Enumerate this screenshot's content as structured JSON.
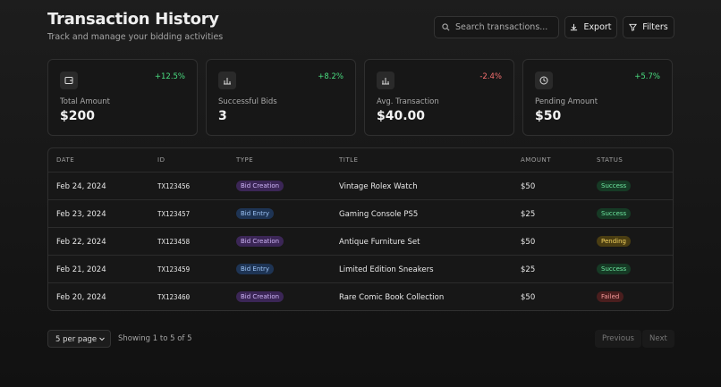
{
  "header": {
    "title": "Transaction History",
    "subtitle": "Track and manage your bidding activities",
    "search_placeholder": "Search transactions...",
    "export": "Export",
    "filters": "Filters"
  },
  "stats": [
    {
      "label": "Total Amount",
      "value": "$200",
      "change": "+12.5%"
    },
    {
      "label": "Successful Bids",
      "value": "3",
      "change": "+8.2%"
    },
    {
      "label": "Avg. Transaction",
      "value": "$40.00",
      "change": "-2.4%"
    },
    {
      "label": "Pending Amount",
      "value": "$50",
      "change": "+5.7%"
    }
  ],
  "table": {
    "columns": [
      "DATE",
      "ID",
      "TYPE",
      "TITLE",
      "AMOUNT",
      "STATUS"
    ],
    "rows": [
      [
        "Feb 24, 2024",
        "TX123456",
        "Bid Creation",
        "Vintage Rolex Watch",
        "$50",
        "Success"
      ],
      [
        "Feb 23, 2024",
        "TX123457",
        "Bid Entry",
        "Gaming Console PS5",
        "$25",
        "Success"
      ],
      [
        "Feb 22, 2024",
        "TX123458",
        "Bid Creation",
        "Antique Furniture Set",
        "$50",
        "Pending"
      ],
      [
        "Feb 21, 2024",
        "TX123459",
        "Bid Entry",
        "Limited Edition Sneakers",
        "$25",
        "Success"
      ],
      [
        "Feb 20, 2024",
        "TX123460",
        "Bid Creation",
        "Rare Comic Book Collection",
        "$50",
        "Failed"
      ]
    ]
  },
  "pagination": {
    "per_page": "5 per page",
    "summary": "Showing 1 to 5 of 5",
    "previous": "Previous",
    "next": "Next"
  }
}
